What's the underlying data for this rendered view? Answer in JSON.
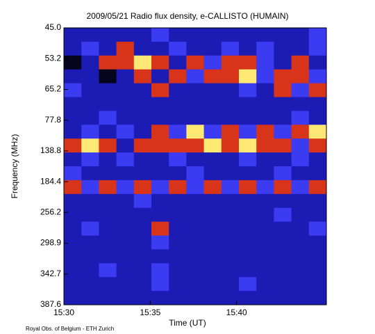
{
  "chart_data": {
    "type": "heatmap",
    "title": "2009/05/21  Radio flux density, e-CALLISTO (HUMAIN)",
    "x_label": "Time (UT)",
    "y_label": "Frequency (MHz)",
    "footer": "Royal Obs. of Belgium - ETH Zurich",
    "xlim": [
      930,
      945.2
    ],
    "xticks": [
      {
        "value": 930,
        "label": "15:30"
      },
      {
        "value": 935,
        "label": "15:35"
      },
      {
        "value": 940,
        "label": "15:40"
      }
    ],
    "ytick_labels": [
      "45.0",
      "53.2",
      "65.2",
      "77.8",
      "138.8",
      "184.4",
      "256.2",
      "298.9",
      "342.7",
      "387.6"
    ],
    "colorscale": [
      "#05051e",
      "#1c1cb4",
      "#3b3bf2",
      "#d8341a",
      "#ffe874"
    ],
    "z": [
      [
        1,
        1,
        1,
        1,
        1,
        2,
        1,
        1,
        1,
        1,
        1,
        1,
        1,
        1,
        2
      ],
      [
        1,
        2,
        1,
        3,
        1,
        1,
        2,
        1,
        1,
        2,
        1,
        2,
        1,
        1,
        2
      ],
      [
        0,
        1,
        3,
        3,
        4,
        3,
        1,
        3,
        2,
        3,
        3,
        2,
        1,
        3,
        1
      ],
      [
        1,
        1,
        0,
        1,
        3,
        1,
        3,
        2,
        3,
        3,
        4,
        2,
        3,
        3,
        2
      ],
      [
        2,
        1,
        1,
        1,
        1,
        3,
        1,
        1,
        1,
        1,
        2,
        1,
        3,
        2,
        3
      ],
      [
        1,
        1,
        1,
        1,
        1,
        1,
        1,
        1,
        1,
        1,
        1,
        1,
        1,
        1,
        1
      ],
      [
        1,
        1,
        2,
        1,
        1,
        1,
        1,
        1,
        1,
        1,
        1,
        1,
        1,
        2,
        1
      ],
      [
        1,
        2,
        1,
        2,
        1,
        3,
        2,
        4,
        2,
        3,
        2,
        3,
        2,
        3,
        4
      ],
      [
        3,
        4,
        3,
        1,
        3,
        3,
        3,
        3,
        4,
        3,
        4,
        3,
        3,
        2,
        3
      ],
      [
        1,
        2,
        1,
        2,
        1,
        1,
        2,
        1,
        1,
        1,
        2,
        1,
        1,
        2,
        1
      ],
      [
        2,
        1,
        1,
        1,
        1,
        1,
        1,
        2,
        1,
        1,
        1,
        1,
        2,
        1,
        1
      ],
      [
        3,
        2,
        3,
        2,
        3,
        2,
        3,
        2,
        3,
        2,
        3,
        2,
        3,
        2,
        3
      ],
      [
        1,
        1,
        1,
        1,
        2,
        1,
        1,
        1,
        1,
        1,
        1,
        1,
        1,
        1,
        1
      ],
      [
        1,
        1,
        1,
        1,
        1,
        1,
        1,
        1,
        1,
        1,
        1,
        1,
        2,
        1,
        1
      ],
      [
        1,
        2,
        1,
        1,
        1,
        3,
        1,
        1,
        1,
        1,
        1,
        1,
        1,
        1,
        2
      ],
      [
        1,
        1,
        1,
        1,
        1,
        2,
        1,
        1,
        1,
        1,
        1,
        1,
        1,
        1,
        1
      ],
      [
        1,
        1,
        1,
        1,
        1,
        1,
        1,
        1,
        1,
        1,
        1,
        1,
        1,
        1,
        1
      ],
      [
        1,
        1,
        2,
        1,
        1,
        2,
        1,
        1,
        1,
        1,
        1,
        1,
        1,
        1,
        1
      ],
      [
        1,
        1,
        1,
        1,
        1,
        2,
        1,
        1,
        1,
        1,
        2,
        1,
        1,
        1,
        1
      ],
      [
        1,
        1,
        1,
        1,
        1,
        1,
        1,
        1,
        1,
        1,
        1,
        1,
        1,
        1,
        1
      ]
    ]
  }
}
